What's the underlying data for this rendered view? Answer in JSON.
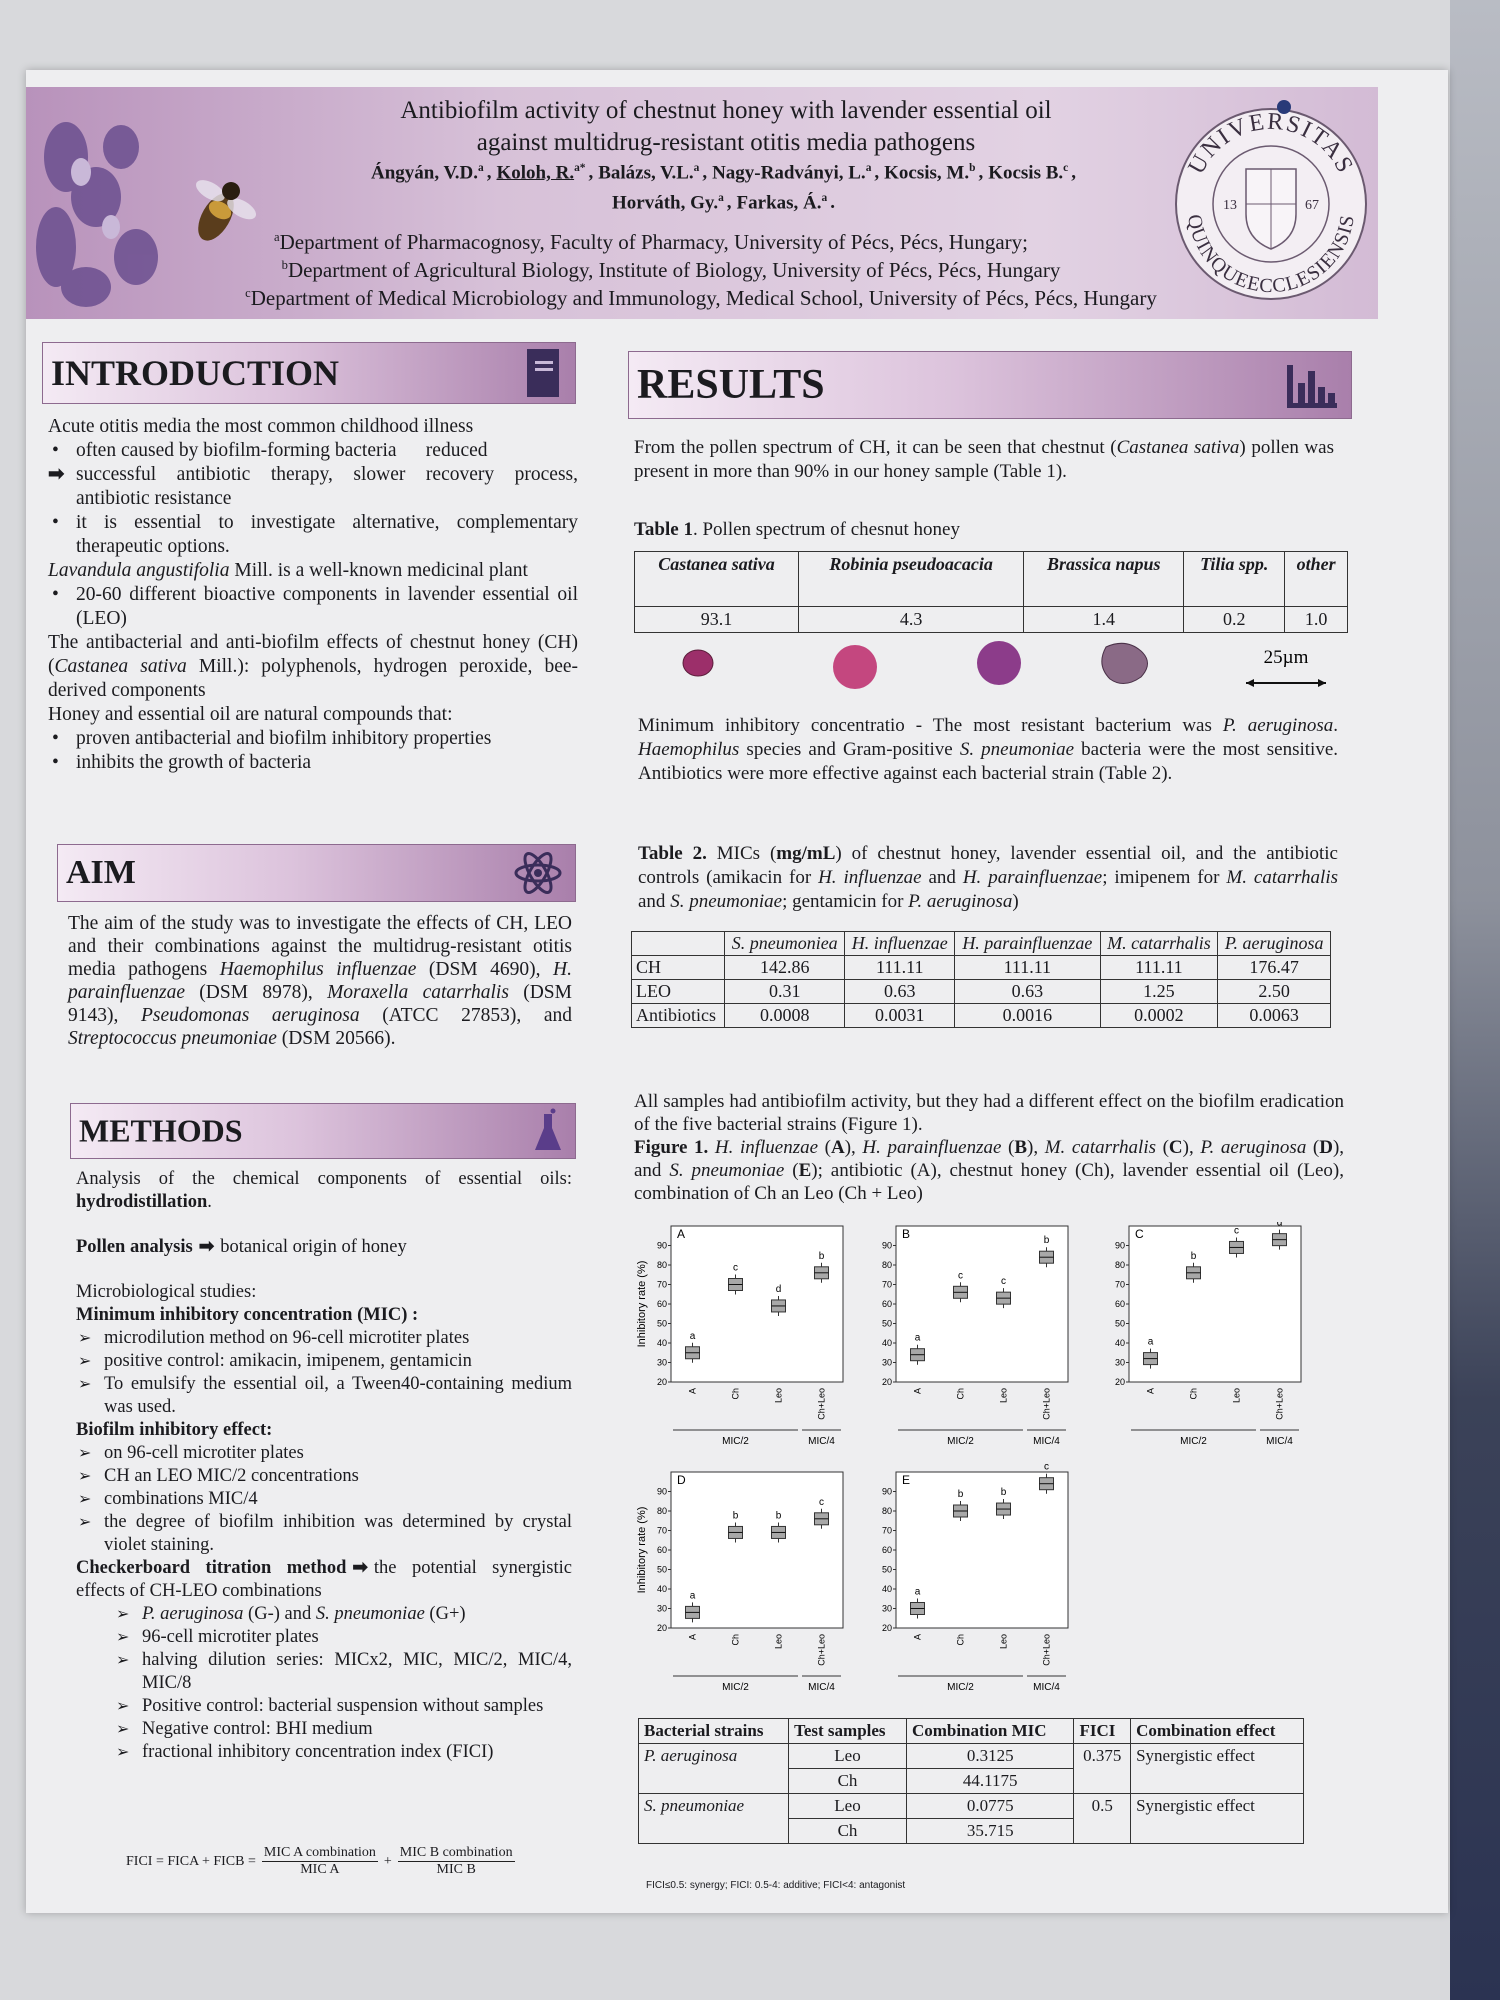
{
  "header": {
    "title": [
      "Antibiofilm activity of chestnut honey with lavender essential oil",
      "against multidrug-resistant otitis media pathogens"
    ],
    "authors": [
      [
        {
          "name": "Ángyán, V.D.",
          "aff": "a",
          "after": ","
        },
        {
          "name": "Koloh, R.",
          "aff": "a*",
          "after": ",",
          "underline": true
        },
        {
          "name": "Balázs, V.L.",
          "aff": "a",
          "after": ","
        },
        {
          "name": "Nagy-Radványi, L.",
          "aff": "a",
          "after": ","
        },
        {
          "name": "Kocsis, M.",
          "aff": "b",
          "after": ","
        },
        {
          "name": "Kocsis B.",
          "aff": "c",
          "after": ","
        }
      ],
      [
        {
          "name": "Horváth, Gy.",
          "aff": "a",
          "after": ","
        },
        {
          "name": "Farkas, Á.",
          "aff": "a",
          "after": "."
        }
      ]
    ],
    "affiliations": [
      {
        "mark": "a",
        "text": "Department of Pharmacognosy, Faculty of Pharmacy, University of Pécs, Pécs, Hungary;"
      },
      {
        "mark": "b",
        "text": "Department of Agricultural Biology, Institute of Biology, University of Pécs, Pécs, Hungary"
      },
      {
        "mark": "c",
        "text": "Department of Medical Microbiology and Immunology, Medical School, University of Pécs, Pécs, Hungary"
      }
    ],
    "logo": {
      "top": "UNIVERSITAS",
      "bottom": "QUINQUEECCLESIENSIS",
      "left": "13",
      "right": "67"
    }
  },
  "introduction": {
    "title": "INTRODUCTION",
    "items": [
      {
        "kind": "plain",
        "text": [
          "Acute otitis media the most common childhood illness"
        ]
      },
      {
        "kind": "bullet",
        "text": [
          "often caused by biofilm-forming bacteria      reduced"
        ]
      },
      {
        "kind": "arrow",
        "text": [
          "successful antibiotic therapy, slower recovery process, antibiotic resistance"
        ]
      },
      {
        "kind": "bullet",
        "text": [
          "it is essential to investigate alternative, complementary therapeutic options."
        ]
      },
      {
        "kind": "plain",
        "text": [
          {
            "i": "Lavandula angustifolia"
          },
          " Mill. is a well-known medicinal plant"
        ]
      },
      {
        "kind": "bullet",
        "text": [
          "20-60 different bioactive components in lavender essential oil (LEO)"
        ]
      },
      {
        "kind": "plain",
        "text": [
          "The antibacterial and anti-biofilm effects of chestnut honey (CH) (",
          {
            "i": "Castanea sativa"
          },
          " Mill.): polyphenols, hydrogen peroxide, bee-derived components"
        ]
      },
      {
        "kind": "plain",
        "text": [
          "Honey and essential oil are natural compounds that:"
        ]
      },
      {
        "kind": "bullet",
        "text": [
          "proven antibacterial and biofilm inhibitory properties"
        ]
      },
      {
        "kind": "bullet",
        "text": [
          "inhibits the growth of bacteria"
        ]
      }
    ]
  },
  "aim": {
    "title": "AIM",
    "text": [
      "The aim of the study was to investigate the effects of CH, LEO and their combinations against the multidrug-resistant otitis media pathogens ",
      {
        "i": "Haemophilus influenzae"
      },
      " (DSM 4690), ",
      {
        "i": "H. parainfluenzae"
      },
      " (DSM 8978), ",
      {
        "i": "Moraxella catarrhalis"
      },
      " (DSM 9143), ",
      {
        "i": "Pseudomonas aeruginosa"
      },
      " (ATCC 27853), and ",
      {
        "i": "Streptococcus pneumoniae"
      },
      " (DSM 20566)."
    ]
  },
  "methods": {
    "title": "METHODS",
    "items": [
      {
        "kind": "plain",
        "text": [
          "Analysis of the chemical components of essential oils: ",
          {
            "b": "hydrodistillation"
          },
          "."
        ]
      },
      {
        "kind": "para-pair",
        "text": [
          {
            "b": "Pollen analysis"
          }
        ],
        "after": [
          "botanical origin of honey"
        ]
      },
      {
        "kind": "para",
        "text": [
          "Microbiological studies:"
        ]
      },
      {
        "kind": "plain",
        "text": [
          {
            "b": "Minimum inhibitory concentration (MIC) :"
          }
        ]
      },
      {
        "kind": "check",
        "text": [
          "microdilution method on 96-cell microtiter plates"
        ]
      },
      {
        "kind": "check",
        "text": [
          "positive control: amikacin, imipenem, gentamicin"
        ]
      },
      {
        "kind": "check",
        "text": [
          "To emulsify the essential oil, a Tween40-containing medium was used."
        ]
      },
      {
        "kind": "plain",
        "text": [
          {
            "b": "Biofilm inhibitory effect:"
          }
        ]
      },
      {
        "kind": "check",
        "text": [
          "on 96-cell microtiter plates"
        ]
      },
      {
        "kind": "check",
        "text": [
          "CH an LEO MIC/2 concentrations"
        ]
      },
      {
        "kind": "check",
        "text": [
          "combinations MIC/4"
        ]
      },
      {
        "kind": "check",
        "text": [
          "the degree of biofilm inhibition was determined by crystal violet staining."
        ]
      },
      {
        "kind": "pair",
        "text": [
          {
            "b": "Checkerboard titration method"
          }
        ],
        "after": [
          "the potential synergistic effects of CH-LEO combinations"
        ]
      },
      {
        "kind": "subcheck",
        "text": [
          {
            "i": "P. aeruginosa"
          },
          " (G-) and ",
          {
            "i": "S. pneumoniae"
          },
          " (G+)"
        ]
      },
      {
        "kind": "subcheck",
        "text": [
          "96-cell microtiter plates"
        ]
      },
      {
        "kind": "subcheck",
        "text": [
          "halving dilution series: MICx2, MIC, MIC/2, MIC/4, MIC/8"
        ]
      },
      {
        "kind": "subcheck",
        "text": [
          "Positive control: bacterial suspension without samples"
        ]
      },
      {
        "kind": "subcheck",
        "text": [
          "Negative control: BHI medium"
        ]
      },
      {
        "kind": "subcheck",
        "text": [
          "fractional inhibitory concentration index (FICI)"
        ]
      }
    ],
    "formula": {
      "left": "FICI = FICA + FICB =",
      "plus": "+",
      "fractions": [
        {
          "num": "MIC A combination",
          "den": "MIC A"
        },
        {
          "num": "MIC B combination",
          "den": "MIC B"
        }
      ]
    }
  },
  "results": {
    "title": "RESULTS",
    "p1": [
      "From the pollen spectrum of CH, it can be seen that chestnut (",
      {
        "i": "Castanea sativa"
      },
      ") pollen was present in more than 90% in our honey sample (Table 1)."
    ],
    "table1": {
      "caption": [
        {
          "b": "Table 1"
        },
        ". Pollen spectrum of chesnut honey"
      ],
      "header": [
        "Castanea sativa",
        "Robinia pseudoacacia",
        "Brassica napus",
        "Tilia spp.",
        "other"
      ],
      "row": [
        "93.1",
        "4.3",
        "1.4",
        "0.2",
        "1.0"
      ],
      "scale": "25µm"
    },
    "p2": [
      "Minimum inhibitory concentratio - The most resistant bacterium was ",
      {
        "i": "P. aeruginosa"
      },
      ". ",
      {
        "i": "Haemophilus"
      },
      " species and Gram-positive ",
      {
        "i": "S. pneumoniae"
      },
      " bacteria were the most sensitive. Antibiotics were more effective against each bacterial strain (Table 2)."
    ],
    "table2": {
      "caption": [
        {
          "b": "Table 2."
        },
        " MICs (",
        {
          "b": "mg/mL"
        },
        ") of chestnut honey, lavender essential oil, and the antibiotic controls (amikacin for ",
        {
          "i": "H. influenzae"
        },
        " and ",
        {
          "i": "H. parainfluenzae"
        },
        "; imipenem for ",
        {
          "i": "M. catarrhalis"
        },
        " and ",
        {
          "i": "S. pneumoniae"
        },
        "; gentamicin for ",
        {
          "i": "P. aeruginosa"
        },
        ")"
      ],
      "header": [
        null,
        "S. pneumoniea",
        "H. influenzae",
        "H. parainfluenzae",
        "M. catarrhalis",
        "P. aeruginosa"
      ],
      "rows": [
        [
          "CH",
          "142.86",
          "111.11",
          "111.11",
          "111.11",
          "176.47"
        ],
        [
          "LEO",
          "0.31",
          "0.63",
          "0.63",
          "1.25",
          "2.50"
        ],
        [
          "Antibiotics",
          "0.0008",
          "0.0031",
          "0.0016",
          "0.0002",
          "0.0063"
        ]
      ]
    },
    "p3": [
      "All samples had antibiofilm activity, but they had a different effect on the biofilm eradication of the five bacterial strains (Figure 1)."
    ],
    "figure_caption": [
      {
        "b": "Figure 1."
      },
      " ",
      {
        "i": "H. influenzae"
      },
      " (",
      {
        "b": "A"
      },
      "), ",
      {
        "i": "H. parainfluenzae"
      },
      " (",
      {
        "b": "B"
      },
      "), ",
      {
        "i": "M. catarrhalis"
      },
      " (",
      {
        "b": "C"
      },
      "), ",
      {
        "i": "P. aeruginosa"
      },
      " (",
      {
        "b": "D"
      },
      "), and ",
      {
        "i": "S. pneumoniae"
      },
      " (",
      {
        "b": "E"
      },
      "); antibiotic (A), chestnut honey (Ch), lavender essential oil (Leo), combination of Ch an Leo (Ch + Leo)"
    ],
    "figure": {
      "type": "box",
      "y_label": "Inhibitory rate (%)",
      "categories": [
        "A",
        "Ch",
        "Leo",
        "Ch+Leo"
      ],
      "groups": [
        "MIC/2",
        "MIC/4"
      ],
      "ylim": [
        20,
        100
      ],
      "yticks": [
        20,
        30,
        40,
        50,
        60,
        70,
        80,
        90
      ],
      "color": "#a8a8a8",
      "panels": [
        {
          "label": "A",
          "values": [
            35,
            70,
            59,
            76
          ],
          "letters": [
            "a",
            "c",
            "d",
            "b"
          ]
        },
        {
          "label": "B",
          "values": [
            34,
            66,
            63,
            84
          ],
          "letters": [
            "a",
            "c",
            "c",
            "b"
          ]
        },
        {
          "label": "C",
          "values": [
            32,
            76,
            89,
            93
          ],
          "letters": [
            "a",
            "b",
            "c",
            "d"
          ]
        },
        {
          "label": "D",
          "values": [
            28,
            69,
            69,
            76
          ],
          "letters": [
            "a",
            "b",
            "b",
            "c"
          ]
        },
        {
          "label": "E",
          "values": [
            30,
            80,
            81,
            94
          ],
          "letters": [
            "a",
            "b",
            "b",
            "c"
          ]
        }
      ]
    },
    "table3": {
      "header": [
        "Bacterial strains",
        "Test samples",
        "Combination MIC",
        "FICI",
        "Combination effect"
      ],
      "rows": [
        {
          "strain": "P. aeruginosa",
          "fici": "0.375",
          "effect": "Synergistic effect",
          "samples": [
            {
              "name": "Leo",
              "mic": "0.3125"
            },
            {
              "name": "Ch",
              "mic": "44.1175"
            }
          ]
        },
        {
          "strain": "S. pneumoniae",
          "fici": "0.5",
          "effect": "Synergistic effect",
          "samples": [
            {
              "name": "Leo",
              "mic": "0.0775"
            },
            {
              "name": "Ch",
              "mic": "35.715"
            }
          ]
        }
      ],
      "footnote": "FICI≤0.5: synergy; FICI: 0.5-4: additive; FICI<4: antagonist"
    }
  }
}
